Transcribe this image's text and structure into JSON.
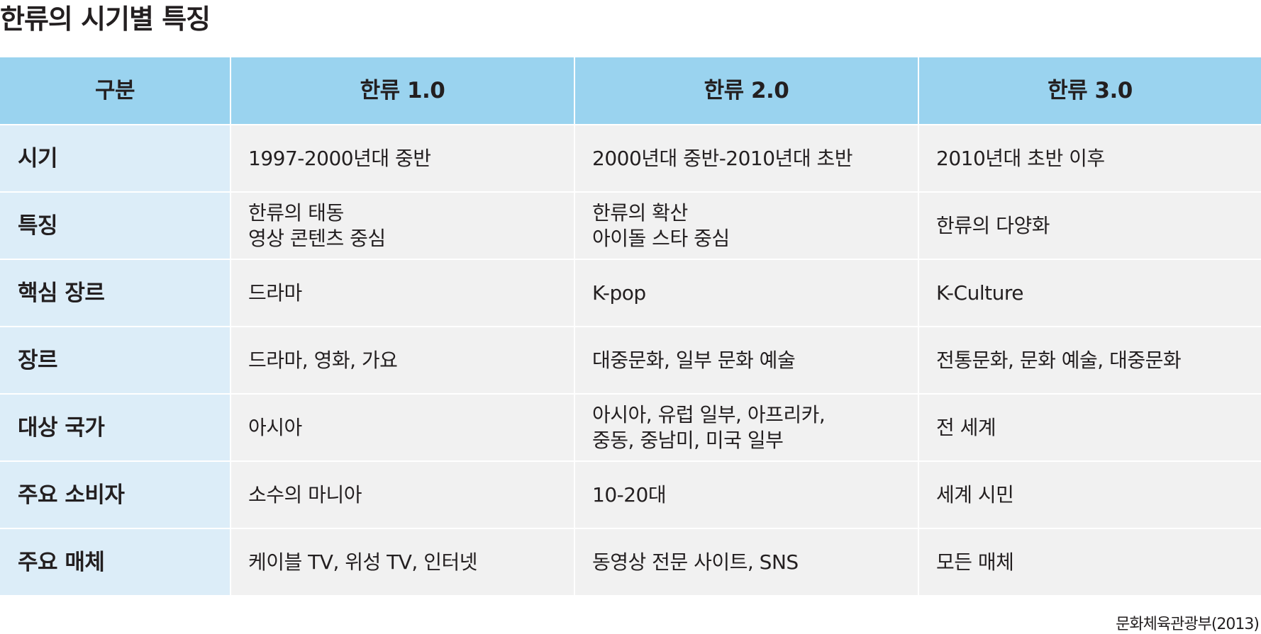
{
  "title": "한류의 시기별 특징",
  "table": {
    "headers": [
      "구분",
      "한류 1.0",
      "한류 2.0",
      "한류 3.0"
    ],
    "rows": [
      {
        "label": "시기",
        "cells": [
          "1997-2000년대 중반",
          "2000년대 중반-2010년대 초반",
          "2010년대 초반 이후"
        ]
      },
      {
        "label": "특징",
        "cells": [
          "한류의 태동\n영상 콘텐츠 중심",
          "한류의 확산\n아이돌 스타 중심",
          "한류의 다양화"
        ]
      },
      {
        "label": "핵심 장르",
        "cells": [
          "드라마",
          "K-pop",
          "K-Culture"
        ]
      },
      {
        "label": "장르",
        "cells": [
          "드라마, 영화, 가요",
          "대중문화, 일부 문화 예술",
          "전통문화, 문화 예술, 대중문화"
        ]
      },
      {
        "label": "대상 국가",
        "cells": [
          "아시아",
          "아시아, 유럽 일부, 아프리카,\n중동, 중남미, 미국 일부",
          "전 세계"
        ]
      },
      {
        "label": "주요 소비자",
        "cells": [
          "소수의 마니아",
          "10-20대",
          "세계 시민"
        ]
      },
      {
        "label": "주요 매체",
        "cells": [
          "케이블 TV, 위성 TV, 인터넷",
          "동영상 전문 사이트, SNS",
          "모든 매체"
        ]
      }
    ]
  },
  "source": "문화체육관광부(2013)",
  "colors": {
    "header_bg": "#9ad3ef",
    "row_header_bg": "#dcedf8",
    "cell_bg": "#f1f1f1",
    "text": "#231f20"
  }
}
